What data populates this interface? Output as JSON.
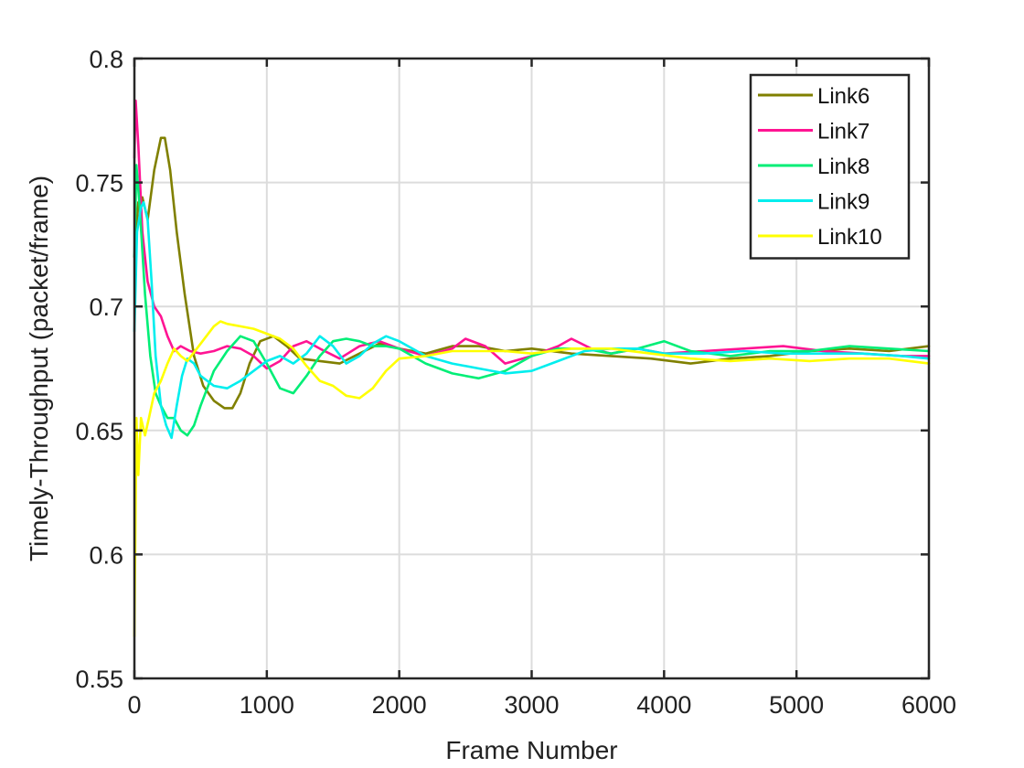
{
  "chart_data": {
    "type": "line",
    "title": "",
    "xlabel": "Frame Number",
    "ylabel": "Timely-Throughput (packet/frame)",
    "xlim": [
      0,
      6000
    ],
    "ylim": [
      0.55,
      0.8
    ],
    "xticks": [
      0,
      1000,
      2000,
      3000,
      4000,
      5000,
      6000
    ],
    "yticks": [
      0.55,
      0.6,
      0.65,
      0.7,
      0.75,
      0.8
    ],
    "xtick_labels": [
      "0",
      "1000",
      "2000",
      "3000",
      "4000",
      "5000",
      "6000"
    ],
    "ytick_labels": [
      "0.55",
      "0.6",
      "0.65",
      "0.7",
      "0.75",
      "0.8"
    ],
    "grid": true,
    "legend_position": "top-right",
    "series": [
      {
        "name": "Link6",
        "color": "#808000",
        "x": [
          0,
          30,
          60,
          100,
          150,
          200,
          230,
          270,
          320,
          380,
          450,
          520,
          600,
          680,
          740,
          800,
          870,
          950,
          1050,
          1150,
          1250,
          1400,
          1550,
          1700,
          1850,
          2000,
          2200,
          2400,
          2600,
          2800,
          3000,
          3300,
          3600,
          3900,
          4200,
          4500,
          4800,
          5100,
          5400,
          5700,
          6000
        ],
        "y": [
          0.72,
          0.742,
          0.744,
          0.735,
          0.755,
          0.768,
          0.768,
          0.755,
          0.73,
          0.705,
          0.68,
          0.668,
          0.662,
          0.659,
          0.659,
          0.665,
          0.677,
          0.686,
          0.688,
          0.684,
          0.679,
          0.678,
          0.677,
          0.681,
          0.685,
          0.683,
          0.681,
          0.684,
          0.684,
          0.682,
          0.683,
          0.681,
          0.68,
          0.679,
          0.677,
          0.679,
          0.68,
          0.682,
          0.683,
          0.682,
          0.684
        ]
      },
      {
        "name": "Link7",
        "color": "#ff1493",
        "x": [
          0,
          10,
          30,
          60,
          100,
          150,
          200,
          250,
          300,
          350,
          420,
          500,
          600,
          700,
          800,
          900,
          1000,
          1100,
          1200,
          1300,
          1400,
          1550,
          1700,
          1850,
          2000,
          2200,
          2400,
          2500,
          2650,
          2800,
          3000,
          3200,
          3300,
          3450,
          3600,
          3800,
          4000,
          4300,
          4600,
          4900,
          5200,
          5500,
          5800,
          6000
        ],
        "y": [
          0.76,
          0.783,
          0.765,
          0.73,
          0.71,
          0.7,
          0.696,
          0.688,
          0.682,
          0.684,
          0.682,
          0.681,
          0.682,
          0.684,
          0.683,
          0.68,
          0.675,
          0.678,
          0.684,
          0.686,
          0.683,
          0.679,
          0.684,
          0.686,
          0.683,
          0.68,
          0.683,
          0.687,
          0.684,
          0.677,
          0.68,
          0.684,
          0.687,
          0.683,
          0.681,
          0.683,
          0.681,
          0.682,
          0.683,
          0.684,
          0.682,
          0.681,
          0.68,
          0.68
        ]
      },
      {
        "name": "Link8",
        "color": "#00ee76",
        "x": [
          0,
          15,
          40,
          80,
          120,
          160,
          200,
          250,
          300,
          350,
          400,
          450,
          500,
          600,
          700,
          800,
          900,
          1000,
          1100,
          1200,
          1300,
          1400,
          1500,
          1600,
          1700,
          1800,
          1900,
          2000,
          2200,
          2400,
          2600,
          2800,
          3000,
          3200,
          3400,
          3600,
          3800,
          4000,
          4200,
          4500,
          4800,
          5100,
          5400,
          5700,
          6000
        ],
        "y": [
          0.72,
          0.757,
          0.74,
          0.705,
          0.68,
          0.665,
          0.66,
          0.655,
          0.655,
          0.65,
          0.648,
          0.652,
          0.66,
          0.674,
          0.682,
          0.688,
          0.686,
          0.677,
          0.667,
          0.665,
          0.672,
          0.68,
          0.686,
          0.687,
          0.686,
          0.684,
          0.684,
          0.683,
          0.677,
          0.673,
          0.671,
          0.674,
          0.68,
          0.683,
          0.683,
          0.681,
          0.683,
          0.686,
          0.682,
          0.68,
          0.682,
          0.682,
          0.684,
          0.683,
          0.682
        ]
      },
      {
        "name": "Link9",
        "color": "#00eeee",
        "x": [
          0,
          20,
          50,
          70,
          100,
          130,
          160,
          200,
          240,
          280,
          320,
          360,
          400,
          450,
          500,
          600,
          700,
          800,
          900,
          1000,
          1100,
          1200,
          1300,
          1400,
          1500,
          1600,
          1700,
          1800,
          1900,
          2000,
          2200,
          2400,
          2600,
          2800,
          3000,
          3200,
          3400,
          3600,
          3800,
          4000,
          4300,
          4600,
          4900,
          5200,
          5500,
          5800,
          6000
        ],
        "y": [
          0.69,
          0.73,
          0.74,
          0.742,
          0.735,
          0.71,
          0.68,
          0.66,
          0.652,
          0.647,
          0.66,
          0.672,
          0.679,
          0.677,
          0.672,
          0.668,
          0.667,
          0.67,
          0.674,
          0.678,
          0.68,
          0.677,
          0.681,
          0.688,
          0.684,
          0.677,
          0.68,
          0.685,
          0.688,
          0.686,
          0.68,
          0.677,
          0.675,
          0.673,
          0.674,
          0.678,
          0.682,
          0.683,
          0.683,
          0.681,
          0.681,
          0.682,
          0.681,
          0.681,
          0.681,
          0.68,
          0.679
        ]
      },
      {
        "name": "Link10",
        "color": "#ffff00",
        "x": [
          0,
          15,
          30,
          50,
          80,
          110,
          150,
          200,
          250,
          300,
          350,
          400,
          500,
          600,
          650,
          700,
          800,
          900,
          1000,
          1100,
          1200,
          1300,
          1400,
          1500,
          1600,
          1700,
          1800,
          1900,
          2000,
          2200,
          2400,
          2600,
          2800,
          3000,
          3300,
          3600,
          3900,
          4200,
          4500,
          4800,
          5100,
          5400,
          5700,
          6000
        ],
        "y": [
          0.567,
          0.655,
          0.632,
          0.655,
          0.648,
          0.655,
          0.665,
          0.67,
          0.677,
          0.683,
          0.68,
          0.678,
          0.685,
          0.692,
          0.694,
          0.693,
          0.692,
          0.691,
          0.689,
          0.687,
          0.683,
          0.676,
          0.67,
          0.668,
          0.664,
          0.663,
          0.667,
          0.674,
          0.679,
          0.68,
          0.682,
          0.682,
          0.682,
          0.681,
          0.683,
          0.683,
          0.681,
          0.679,
          0.678,
          0.679,
          0.678,
          0.679,
          0.679,
          0.677
        ]
      }
    ]
  }
}
